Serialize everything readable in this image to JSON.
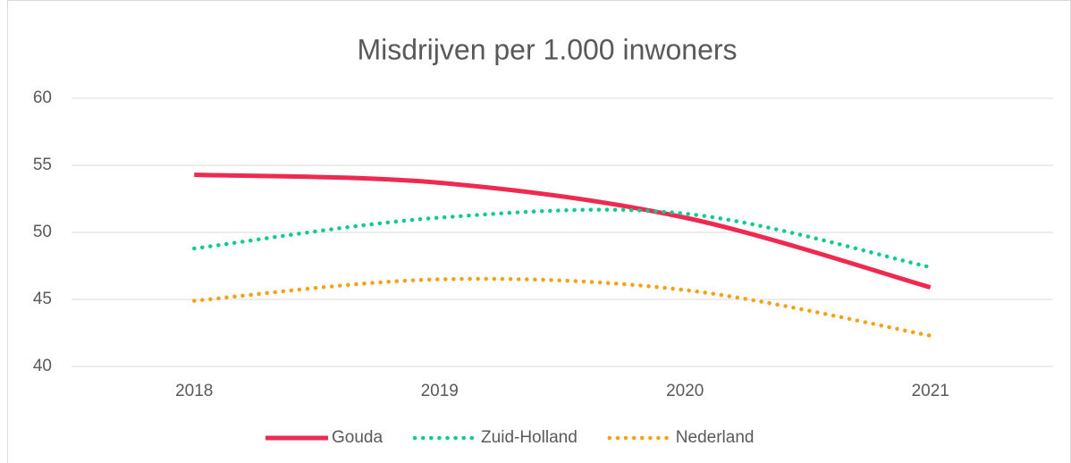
{
  "chart_data": {
    "type": "line",
    "title": "Misdrijven per 1.000 inwoners",
    "categories": [
      "2018",
      "2019",
      "2020",
      "2021"
    ],
    "series": [
      {
        "name": "Gouda",
        "color": "#ee2a50",
        "dash": "solid",
        "values": [
          54.3,
          53.7,
          51.1,
          45.9
        ]
      },
      {
        "name": "Zuid-Holland",
        "color": "#12c994",
        "dash": "dotted",
        "values": [
          48.8,
          51.1,
          51.4,
          47.4
        ]
      },
      {
        "name": "Nederland",
        "color": "#f7a11a",
        "dash": "dotted",
        "values": [
          44.9,
          46.5,
          45.7,
          42.3
        ]
      }
    ],
    "ylim": [
      40,
      60
    ],
    "yticks": [
      40,
      45,
      50,
      55,
      60
    ],
    "grid": true,
    "legend": "bottom",
    "smooth": true
  }
}
